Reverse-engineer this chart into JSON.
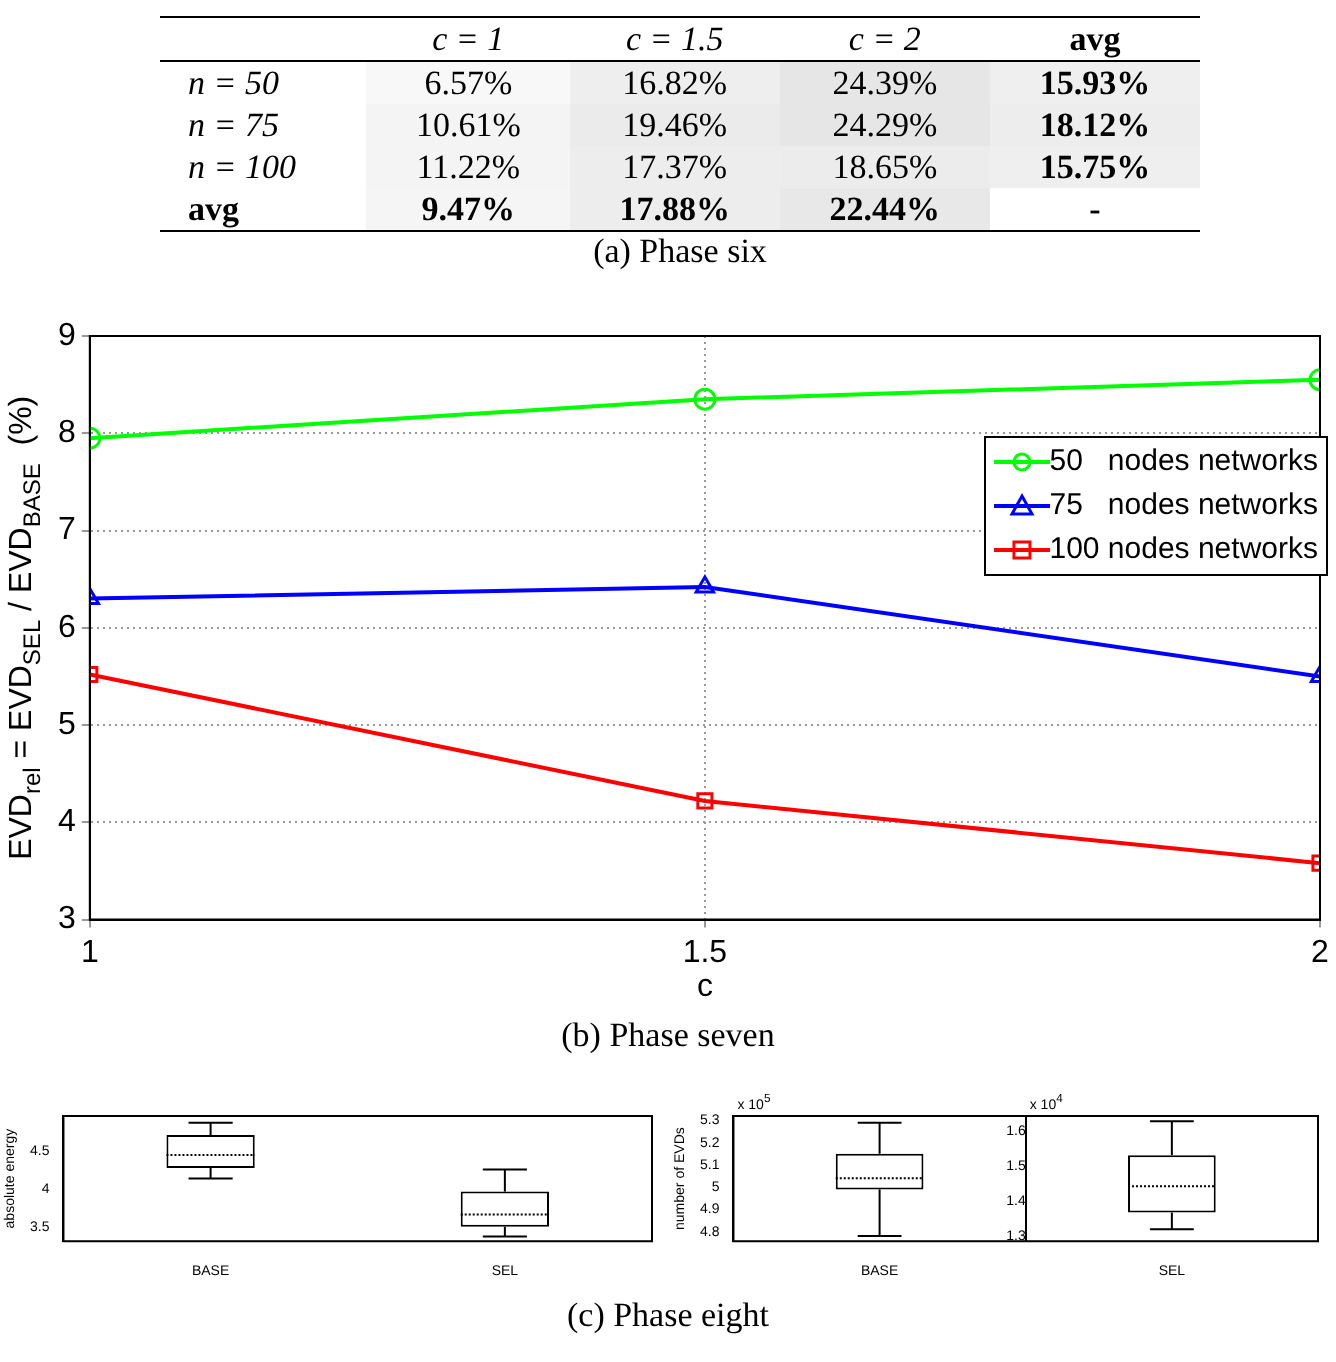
{
  "chart_data": [
    {
      "type": "heatmap",
      "title": "(a) Phase six",
      "categories": [
        "c = 1",
        "c = 1.5",
        "c = 2",
        "avg"
      ],
      "y_categories": [
        "n = 50",
        "n = 75",
        "n = 100",
        "avg"
      ],
      "cells": [
        [
          6.57,
          16.82,
          24.39,
          15.93
        ],
        [
          10.61,
          19.46,
          24.29,
          18.12
        ],
        [
          11.22,
          17.37,
          18.65,
          15.75
        ],
        [
          9.47,
          17.88,
          22.44,
          null
        ]
      ],
      "cell_labels": [
        [
          "6.57%",
          "16.82%",
          "24.39%",
          "15.93%"
        ],
        [
          "10.61%",
          "19.46%",
          "24.29%",
          "18.12%"
        ],
        [
          "11.22%",
          "17.37%",
          "18.65%",
          "15.75%"
        ],
        [
          "9.47%",
          "17.88%",
          "22.44%",
          "-"
        ]
      ]
    },
    {
      "type": "line",
      "title": "(b) Phase seven",
      "xlabel": "c",
      "ylabel": "EVD$_{rel}$ = EVD$_{SEL}$ / EVD$_{BASE}$  (%)",
      "x": [
        1,
        1.5,
        2
      ],
      "xlim": [
        1,
        2
      ],
      "xticks": [
        1,
        1.5,
        2
      ],
      "ylim": [
        3,
        9
      ],
      "yticks": [
        3,
        4,
        5,
        6,
        7,
        8,
        9
      ],
      "grid": true,
      "legend": "top right",
      "line_style": "solid",
      "series": [
        {
          "name": "50   nodes networks",
          "color": "#00ff00",
          "marker": "circle",
          "values": [
            7.95,
            8.35,
            8.55
          ]
        },
        {
          "name": "75   nodes networks",
          "color": "#0000ff",
          "marker": "triangle",
          "values": [
            6.3,
            6.42,
            5.5
          ]
        },
        {
          "name": "100 nodes networks",
          "color": "#ff0000",
          "marker": "square",
          "values": [
            5.52,
            4.22,
            3.58
          ]
        }
      ]
    },
    {
      "type": "box",
      "title": "(c) Phase eight",
      "ylabel": "absolute energy",
      "categories": [
        "BASE",
        "SEL"
      ],
      "ylim": [
        3.32,
        4.96
      ],
      "yticks": [
        3.5,
        4,
        4.5
      ],
      "boxes": [
        {
          "low": 4.14,
          "q1": 4.28,
          "median": 4.45,
          "q3": 4.71,
          "high": 4.87
        },
        {
          "low": 3.38,
          "q1": 3.51,
          "median": 3.67,
          "q3": 3.97,
          "high": 4.26
        }
      ]
    },
    {
      "type": "box",
      "ylabel": "number of EVDs",
      "annotations": [
        "x 10$^{5}$",
        "x 10$^{4}$"
      ],
      "categories": [
        "BASE",
        "SEL"
      ],
      "ylim": [
        4.757,
        5.32
      ],
      "yticks": [
        4.8,
        4.9,
        5,
        5.1,
        5.2,
        5.3
      ],
      "y2lim": [
        1.285,
        1.643
      ],
      "y2ticks": [
        1.3,
        1.4,
        1.5,
        1.6
      ],
      "series": [
        {
          "boxes": [
            {
              "low": 4.78,
              "q1": 4.99,
              "median": 5.04,
              "q3": 5.15,
              "high": 5.29
            },
            null
          ]
        },
        {
          "axis": "y2",
          "boxes": [
            null,
            {
              "low": 1.319,
              "q1": 1.367,
              "median": 1.442,
              "q3": 1.531,
              "high": 1.628
            }
          ]
        }
      ]
    }
  ]
}
